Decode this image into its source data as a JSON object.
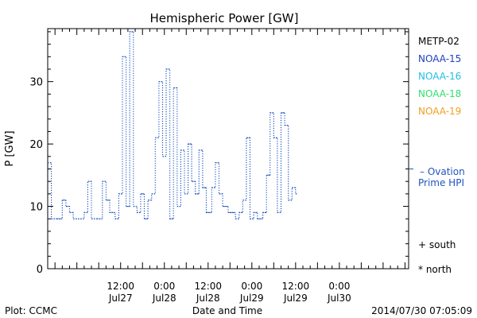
{
  "chart_data": {
    "type": "line",
    "title": "Hemispheric Power [GW]",
    "ylabel": "P [GW]",
    "xlabel": "Date and Time",
    "ylim": [
      0,
      38.5
    ],
    "xlim": [
      "2014-07-26T16:00",
      "2014-07-30T19:00"
    ],
    "yticks": [
      0,
      10,
      20,
      30
    ],
    "xticks": [
      {
        "t": "2014-07-27T12:00",
        "time": "12:00",
        "date": "Jul27"
      },
      {
        "t": "2014-07-28T00:00",
        "time": "0:00",
        "date": "Jul28"
      },
      {
        "t": "2014-07-28T12:00",
        "time": "12:00",
        "date": "Jul28"
      },
      {
        "t": "2014-07-29T00:00",
        "time": "0:00",
        "date": "Jul29"
      },
      {
        "t": "2014-07-29T12:00",
        "time": "12:00",
        "date": "Jul29"
      },
      {
        "t": "2014-07-30T00:00",
        "time": "0:00",
        "date": "Jul30"
      }
    ],
    "legend": [
      {
        "name": "METP-02",
        "color": "#000000"
      },
      {
        "name": "NOAA-15",
        "color": "#1f3fbf"
      },
      {
        "name": "NOAA-16",
        "color": "#1fbfe6"
      },
      {
        "name": "NOAA-18",
        "color": "#2fdf6f"
      },
      {
        "name": "NOAA-19",
        "color": "#f0a020"
      }
    ],
    "legend_position": "right",
    "series": [
      {
        "name": "Ovation Prime HPI",
        "color": "#1f55c0",
        "style": "dotted-step",
        "points": [
          [
            "2014-07-26T16:00",
            17
          ],
          [
            "2014-07-26T17:00",
            8
          ],
          [
            "2014-07-26T18:30",
            8
          ],
          [
            "2014-07-26T20:00",
            11
          ],
          [
            "2014-07-26T21:00",
            10
          ],
          [
            "2014-07-26T22:00",
            9
          ],
          [
            "2014-07-26T23:00",
            8
          ],
          [
            "2014-07-27T01:00",
            8
          ],
          [
            "2014-07-27T02:00",
            9
          ],
          [
            "2014-07-27T03:00",
            14
          ],
          [
            "2014-07-27T04:00",
            8
          ],
          [
            "2014-07-27T05:30",
            8
          ],
          [
            "2014-07-27T07:00",
            14
          ],
          [
            "2014-07-27T08:00",
            11
          ],
          [
            "2014-07-27T09:00",
            9
          ],
          [
            "2014-07-27T10:30",
            8
          ],
          [
            "2014-07-27T11:30",
            12
          ],
          [
            "2014-07-27T12:30",
            34
          ],
          [
            "2014-07-27T13:30",
            10
          ],
          [
            "2014-07-27T14:30",
            38
          ],
          [
            "2014-07-27T15:30",
            10
          ],
          [
            "2014-07-27T16:30",
            9
          ],
          [
            "2014-07-27T17:30",
            12
          ],
          [
            "2014-07-27T18:30",
            8
          ],
          [
            "2014-07-27T19:30",
            11
          ],
          [
            "2014-07-27T20:30",
            12
          ],
          [
            "2014-07-27T21:30",
            21
          ],
          [
            "2014-07-27T22:30",
            30
          ],
          [
            "2014-07-27T23:30",
            18
          ],
          [
            "2014-07-28T00:30",
            32
          ],
          [
            "2014-07-28T01:30",
            8
          ],
          [
            "2014-07-28T02:30",
            29
          ],
          [
            "2014-07-28T03:30",
            10
          ],
          [
            "2014-07-28T04:30",
            19
          ],
          [
            "2014-07-28T05:30",
            12
          ],
          [
            "2014-07-28T06:30",
            20
          ],
          [
            "2014-07-28T07:30",
            14
          ],
          [
            "2014-07-28T08:30",
            12
          ],
          [
            "2014-07-28T09:30",
            19
          ],
          [
            "2014-07-28T10:30",
            13
          ],
          [
            "2014-07-28T11:30",
            9
          ],
          [
            "2014-07-28T13:00",
            13
          ],
          [
            "2014-07-28T14:00",
            17
          ],
          [
            "2014-07-28T15:00",
            12
          ],
          [
            "2014-07-28T16:00",
            10
          ],
          [
            "2014-07-28T17:30",
            9
          ],
          [
            "2014-07-28T19:30",
            8
          ],
          [
            "2014-07-28T20:30",
            9
          ],
          [
            "2014-07-28T21:30",
            11
          ],
          [
            "2014-07-28T22:30",
            21
          ],
          [
            "2014-07-28T23:30",
            8
          ],
          [
            "2014-07-29T00:30",
            9
          ],
          [
            "2014-07-29T01:30",
            8
          ],
          [
            "2014-07-29T03:00",
            9
          ],
          [
            "2014-07-29T04:00",
            15
          ],
          [
            "2014-07-29T05:00",
            25
          ],
          [
            "2014-07-29T06:00",
            21
          ],
          [
            "2014-07-29T07:00",
            9
          ],
          [
            "2014-07-29T08:00",
            25
          ],
          [
            "2014-07-29T09:00",
            23
          ],
          [
            "2014-07-29T10:00",
            11
          ],
          [
            "2014-07-29T11:00",
            13
          ],
          [
            "2014-07-29T12:00",
            12
          ],
          [
            "2014-07-29T12:30",
            12
          ]
        ]
      }
    ],
    "annotations": {
      "ovation_line1": "Ovation",
      "ovation_line2": "Prime HPI",
      "south": "+ south",
      "north": "* north",
      "plot_credit": "Plot: CCMC",
      "timestamp": "2014/07/30 07:05:09"
    }
  }
}
